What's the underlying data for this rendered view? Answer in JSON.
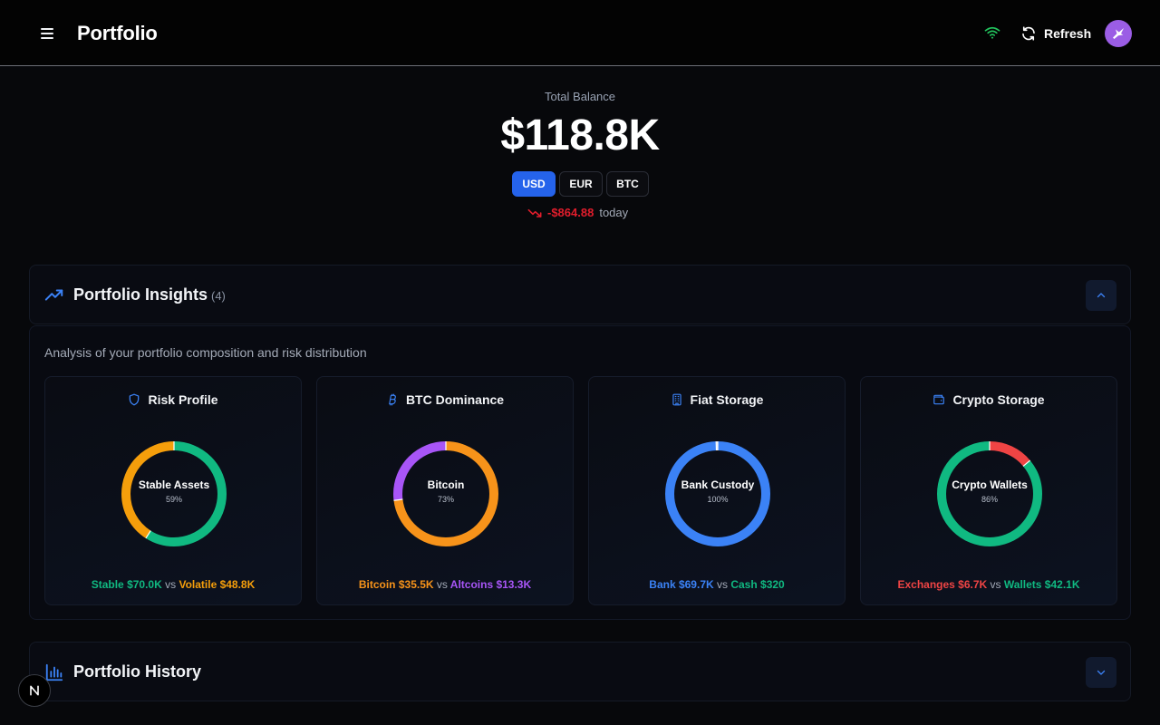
{
  "header": {
    "title": "Portfolio",
    "refresh_label": "Refresh",
    "connection_color": "#22c55e",
    "avatar_color": "#9b5de5"
  },
  "balance": {
    "label": "Total Balance",
    "value": "$118.8K",
    "currencies": [
      "USD",
      "EUR",
      "BTC"
    ],
    "selected_currency": "USD",
    "change_amount": "-$864.88",
    "change_suffix": "today"
  },
  "insights": {
    "title": "Portfolio Insights",
    "count": "(4)",
    "description": "Analysis of your portfolio composition and risk distribution",
    "expanded": true,
    "cards": [
      {
        "title": "Risk Profile",
        "icon": "shield-icon",
        "center_label": "Stable Assets",
        "center_pct": "59%",
        "segments": [
          {
            "label": "Stable",
            "fraction": 0.59,
            "color": "#10b981"
          },
          {
            "label": "Volatile",
            "fraction": 0.41,
            "color": "#f59e0b"
          }
        ],
        "legend": [
          {
            "text": "Stable $70.0K",
            "color": "#10b981"
          },
          {
            "text": "Volatile $48.8K",
            "color": "#f59e0b"
          }
        ],
        "vs": "vs"
      },
      {
        "title": "BTC Dominance",
        "icon": "bitcoin-icon",
        "center_label": "Bitcoin",
        "center_pct": "73%",
        "segments": [
          {
            "label": "Bitcoin",
            "fraction": 0.73,
            "color": "#f7931a"
          },
          {
            "label": "Altcoins",
            "fraction": 0.27,
            "color": "#a855f7"
          }
        ],
        "legend": [
          {
            "text": "Bitcoin $35.5K",
            "color": "#f7931a"
          },
          {
            "text": "Altcoins $13.3K",
            "color": "#a855f7"
          }
        ],
        "vs": "vs"
      },
      {
        "title": "Fiat Storage",
        "icon": "building-icon",
        "center_label": "Bank Custody",
        "center_pct": "100%",
        "segments": [
          {
            "label": "Bank",
            "fraction": 0.995,
            "color": "#3b82f6"
          },
          {
            "label": "Cash",
            "fraction": 0.005,
            "color": "#e5e7eb"
          }
        ],
        "legend": [
          {
            "text": "Bank $69.7K",
            "color": "#3b82f6"
          },
          {
            "text": "Cash $320",
            "color": "#10b981"
          }
        ],
        "vs": "vs"
      },
      {
        "title": "Crypto Storage",
        "icon": "wallet-icon",
        "center_label": "Crypto Wallets",
        "center_pct": "86%",
        "segments": [
          {
            "label": "Exchanges",
            "fraction": 0.14,
            "color": "#ef4444"
          },
          {
            "label": "Wallets",
            "fraction": 0.86,
            "color": "#10b981"
          }
        ],
        "legend": [
          {
            "text": "Exchanges $6.7K",
            "color": "#ef4444"
          },
          {
            "text": "Wallets $42.1K",
            "color": "#10b981"
          }
        ],
        "vs": "vs"
      }
    ]
  },
  "history": {
    "title": "Portfolio History",
    "expanded": false
  },
  "dev_badge": {
    "letter": "N"
  }
}
